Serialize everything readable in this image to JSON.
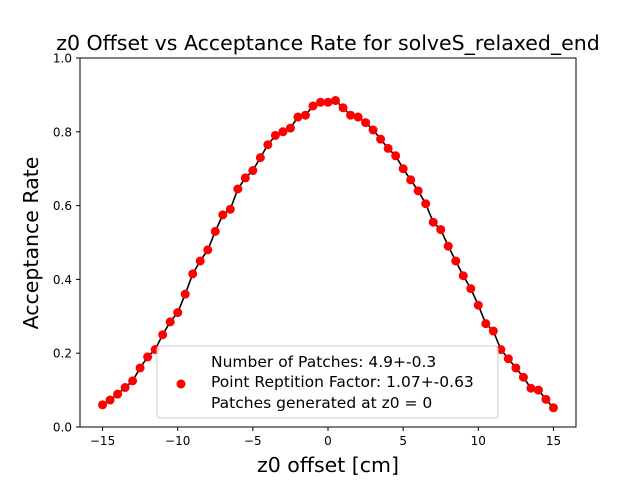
{
  "chart_data": {
    "type": "scatter",
    "title": "z0 Offset vs Acceptance Rate for solveS_relaxed_end",
    "xlabel": "z0 offset [cm]",
    "ylabel": "Acceptance Rate",
    "xlim": [
      -16.5,
      16.5
    ],
    "ylim": [
      0.0,
      1.0
    ],
    "x_ticks": [
      -15,
      -10,
      -5,
      0,
      5,
      10,
      15
    ],
    "y_ticks": [
      0.0,
      0.2,
      0.4,
      0.6,
      0.8,
      1.0
    ],
    "x_tick_labels": [
      "−15",
      "−10",
      "−5",
      "0",
      "5",
      "10",
      "15"
    ],
    "y_tick_labels": [
      "0.0",
      "0.2",
      "0.4",
      "0.6",
      "0.8",
      "1.0"
    ],
    "grid": false,
    "legend_position": "bottom-center",
    "legend_lines": [
      "Number of Patches: 4.9+-0.3",
      "Point Reptition Factor: 1.07+-0.63",
      "Patches generated at z0 = 0"
    ],
    "colors": {
      "points": "#ff0000",
      "line": "#000000"
    },
    "series": [
      {
        "x": [
          -15.0,
          -14.5,
          -14.0,
          -13.5,
          -13.0,
          -12.5,
          -12.0,
          -11.5,
          -11.0,
          -10.5,
          -10.0,
          -9.5,
          -9.0,
          -8.5,
          -8.0,
          -7.5,
          -7.0,
          -6.5,
          -6.0,
          -5.5,
          -5.0,
          -4.5,
          -4.0,
          -3.5,
          -3.0,
          -2.5,
          -2.0,
          -1.5,
          -1.0,
          -0.5,
          0.0,
          0.5,
          1.0,
          1.5,
          2.0,
          2.5,
          3.0,
          3.5,
          4.0,
          4.5,
          5.0,
          5.5,
          6.0,
          6.5,
          7.0,
          7.5,
          8.0,
          8.5,
          9.0,
          9.5,
          10.0,
          10.5,
          11.0,
          11.5,
          12.0,
          12.5,
          13.0,
          13.5,
          14.0,
          14.5,
          15.0
        ],
        "y": [
          0.06,
          0.073,
          0.089,
          0.107,
          0.125,
          0.16,
          0.19,
          0.21,
          0.25,
          0.285,
          0.31,
          0.36,
          0.415,
          0.45,
          0.48,
          0.53,
          0.575,
          0.59,
          0.645,
          0.675,
          0.695,
          0.73,
          0.765,
          0.79,
          0.8,
          0.81,
          0.84,
          0.845,
          0.87,
          0.88,
          0.88,
          0.885,
          0.865,
          0.845,
          0.84,
          0.825,
          0.805,
          0.78,
          0.755,
          0.735,
          0.7,
          0.67,
          0.64,
          0.605,
          0.555,
          0.535,
          0.49,
          0.45,
          0.41,
          0.375,
          0.33,
          0.28,
          0.26,
          0.21,
          0.185,
          0.16,
          0.135,
          0.105,
          0.1,
          0.075,
          0.052
        ]
      }
    ]
  }
}
